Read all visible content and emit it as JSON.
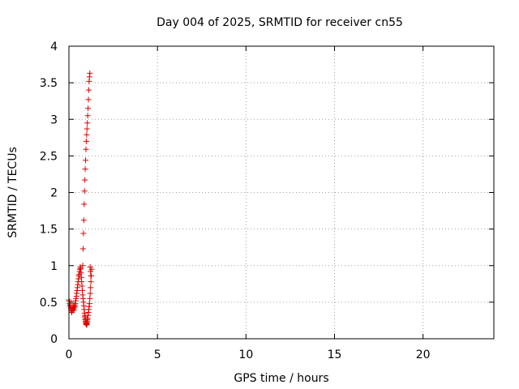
{
  "chart_data": {
    "type": "scatter",
    "title": "Day 004 of 2025, SRMTID for receiver cn55",
    "xlabel": "GPS time / hours",
    "ylabel": "SRMTID / TECUs",
    "xlim": [
      0,
      24
    ],
    "ylim": [
      0,
      4
    ],
    "xticks": [
      0,
      5,
      10,
      15,
      20
    ],
    "xtick_labels": [
      "0",
      "5",
      "10",
      "15",
      "20"
    ],
    "yticks": [
      0,
      0.5,
      1,
      1.5,
      2,
      2.5,
      3,
      3.5,
      4
    ],
    "ytick_labels": [
      "0",
      "0.5",
      "1",
      "1.5",
      "2",
      "2.5",
      "3",
      "3.5",
      "4"
    ],
    "grid": true,
    "marker": "+",
    "color": "#e00000",
    "series": [
      {
        "x": [
          0.0,
          0.02,
          0.04,
          0.06,
          0.08,
          0.1,
          0.12,
          0.14,
          0.16,
          0.18,
          0.2,
          0.22,
          0.24,
          0.26,
          0.28,
          0.3,
          0.32,
          0.34,
          0.36,
          0.38,
          0.4,
          0.42,
          0.44,
          0.46,
          0.48,
          0.5,
          0.52,
          0.54,
          0.56,
          0.58,
          0.6,
          0.62,
          0.64,
          0.66,
          0.68,
          0.7,
          0.72,
          0.74,
          0.76,
          0.78,
          0.8,
          0.82,
          0.84,
          0.86,
          0.88,
          0.9,
          0.92,
          0.94,
          0.96,
          0.98,
          1.0,
          1.02,
          1.04,
          1.06,
          1.08,
          1.1,
          1.12,
          1.14,
          1.16,
          1.18,
          1.2,
          1.22,
          1.24,
          1.26,
          1.28,
          0.78,
          0.8,
          0.82,
          0.84,
          0.86,
          0.88,
          0.9,
          0.92,
          0.94,
          0.96,
          0.98,
          1.0,
          1.02,
          1.04,
          1.06,
          1.08,
          1.1,
          1.12,
          1.14,
          1.16,
          1.18,
          1.2,
          1.22,
          1.24,
          0.9,
          0.92,
          0.94,
          0.96,
          0.98,
          1.0,
          1.02,
          1.04
        ],
        "y": [
          0.53,
          0.51,
          0.48,
          0.46,
          0.44,
          0.42,
          0.4,
          0.38,
          0.36,
          0.38,
          0.4,
          0.42,
          0.44,
          0.41,
          0.39,
          0.43,
          0.46,
          0.44,
          0.48,
          0.52,
          0.55,
          0.58,
          0.62,
          0.66,
          0.7,
          0.74,
          0.78,
          0.82,
          0.86,
          0.88,
          0.92,
          0.95,
          0.98,
          0.96,
          0.9,
          0.84,
          0.78,
          0.72,
          0.66,
          0.6,
          0.55,
          0.5,
          0.45,
          0.4,
          0.35,
          0.3,
          0.26,
          0.24,
          0.22,
          0.2,
          0.19,
          0.21,
          0.24,
          0.28,
          0.32,
          0.36,
          0.4,
          0.44,
          0.48,
          0.55,
          0.62,
          0.7,
          0.78,
          0.86,
          0.95,
          1.0,
          1.23,
          1.44,
          1.62,
          1.84,
          2.02,
          2.17,
          2.32,
          2.44,
          2.59,
          2.7,
          2.79,
          2.87,
          2.95,
          3.05,
          3.15,
          3.27,
          3.4,
          3.52,
          3.58,
          3.63,
          0.98,
          0.92,
          0.86,
          0.32,
          0.28,
          0.24,
          0.21,
          0.2,
          0.19,
          0.22,
          0.26
        ]
      }
    ]
  }
}
